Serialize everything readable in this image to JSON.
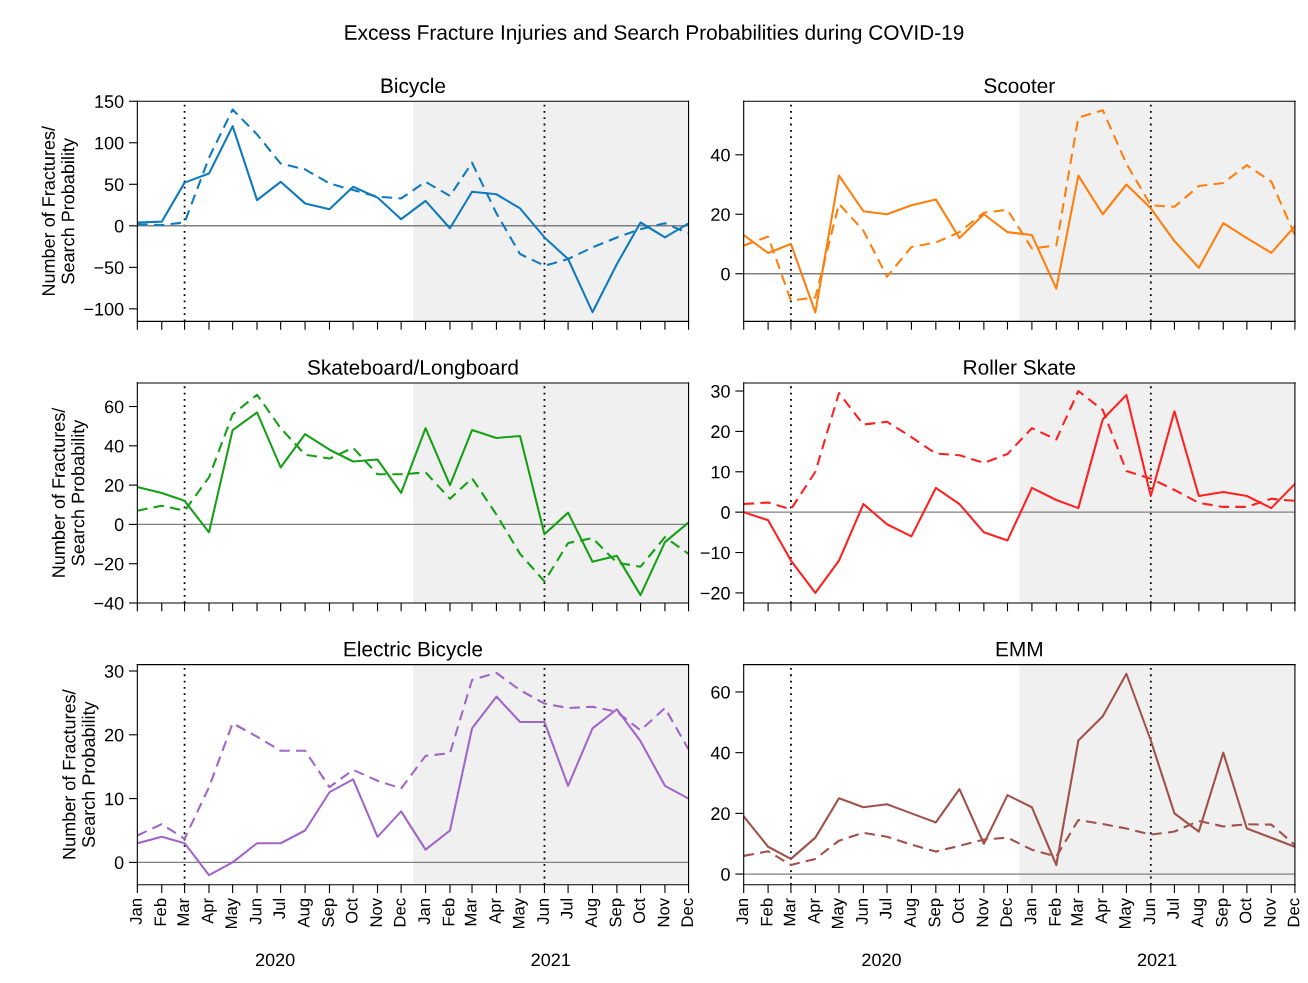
{
  "chart_data": [
    {
      "type": "line",
      "title": "Bicycle",
      "ylabel": "Number of Fractures/\nSearch Probability",
      "tick_labels": "y",
      "grid": false,
      "x": [
        "2020-01",
        "2020-02",
        "2020-03",
        "2020-04",
        "2020-05",
        "2020-06",
        "2020-07",
        "2020-08",
        "2020-09",
        "2020-10",
        "2020-11",
        "2020-12",
        "2021-01",
        "2021-02",
        "2021-03",
        "2021-04",
        "2021-05",
        "2021-06",
        "2021-07",
        "2021-08",
        "2021-09",
        "2021-10",
        "2021-11",
        "2021-12"
      ],
      "xlim": [
        "2020-01",
        "2021-12"
      ],
      "xticks": [
        {
          "value": "2020-01",
          "label": null
        },
        {
          "value": "2020-02",
          "label": null
        },
        {
          "value": "2020-03",
          "label": null
        },
        {
          "value": "2020-04",
          "label": null
        },
        {
          "value": "2020-05",
          "label": null
        },
        {
          "value": "2020-06",
          "label": null
        },
        {
          "value": "2020-07",
          "label": null
        },
        {
          "value": "2020-08",
          "label": null
        },
        {
          "value": "2020-09",
          "label": null
        },
        {
          "value": "2020-10",
          "label": null
        },
        {
          "value": "2020-11",
          "label": null
        },
        {
          "value": "2020-12",
          "label": null
        },
        {
          "value": "2021-01",
          "label": null
        },
        {
          "value": "2021-02",
          "label": null
        },
        {
          "value": "2021-03",
          "label": null
        },
        {
          "value": "2021-04",
          "label": null
        },
        {
          "value": "2021-05",
          "label": null
        },
        {
          "value": "2021-06",
          "label": null
        },
        {
          "value": "2021-07",
          "label": null
        },
        {
          "value": "2021-08",
          "label": null
        },
        {
          "value": "2021-09",
          "label": null
        },
        {
          "value": "2021-10",
          "label": null
        },
        {
          "value": "2021-11",
          "label": null
        },
        {
          "value": "2021-12",
          "label": null
        }
      ],
      "ylim": [
        -115,
        150
      ],
      "yticks": [
        -100,
        -50,
        0,
        50,
        100,
        150
      ],
      "ref_lines": [
        {
          "axis": "x",
          "value": "2020-03",
          "color": "#000000",
          "line_style": "dotted"
        },
        {
          "axis": "x",
          "value": "2021-06",
          "color": "#000000",
          "line_style": "dotted"
        },
        {
          "axis": "y",
          "value": 0,
          "color": "#808080",
          "line_style": "solid"
        }
      ],
      "bands": [
        {
          "axis": "x",
          "from": "2020-12-16",
          "to": "2021-12",
          "color": "#f0f0f0"
        }
      ],
      "series": [
        {
          "color": "#0f7bbd",
          "line_style": "solid",
          "values": [
            4,
            5,
            52,
            63,
            120,
            31,
            53,
            27,
            20,
            47,
            34,
            8,
            30,
            -3,
            41,
            38,
            21,
            -14,
            -40,
            -104,
            -46,
            4,
            -14,
            3
          ]
        },
        {
          "color": "#0f7bbd",
          "line_style": "dashed",
          "values": [
            2,
            1,
            4,
            82,
            140,
            110,
            75,
            68,
            51,
            43,
            35,
            33,
            53,
            36,
            76,
            15,
            -34,
            -48,
            -40,
            -26,
            -14,
            -4,
            3,
            -9
          ]
        }
      ]
    },
    {
      "type": "line",
      "title": "Scooter",
      "tick_labels": "y",
      "grid": false,
      "x": [
        "2020-01",
        "2020-02",
        "2020-03",
        "2020-04",
        "2020-05",
        "2020-06",
        "2020-07",
        "2020-08",
        "2020-09",
        "2020-10",
        "2020-11",
        "2020-12",
        "2021-01",
        "2021-02",
        "2021-03",
        "2021-04",
        "2021-05",
        "2021-06",
        "2021-07",
        "2021-08",
        "2021-09",
        "2021-10",
        "2021-11",
        "2021-12"
      ],
      "xlim": [
        "2020-01",
        "2021-12"
      ],
      "xticks": [
        {
          "value": "2020-01",
          "label": null
        },
        {
          "value": "2020-02",
          "label": null
        },
        {
          "value": "2020-03",
          "label": null
        },
        {
          "value": "2020-04",
          "label": null
        },
        {
          "value": "2020-05",
          "label": null
        },
        {
          "value": "2020-06",
          "label": null
        },
        {
          "value": "2020-07",
          "label": null
        },
        {
          "value": "2020-08",
          "label": null
        },
        {
          "value": "2020-09",
          "label": null
        },
        {
          "value": "2020-10",
          "label": null
        },
        {
          "value": "2020-11",
          "label": null
        },
        {
          "value": "2020-12",
          "label": null
        },
        {
          "value": "2021-01",
          "label": null
        },
        {
          "value": "2021-02",
          "label": null
        },
        {
          "value": "2021-03",
          "label": null
        },
        {
          "value": "2021-04",
          "label": null
        },
        {
          "value": "2021-05",
          "label": null
        },
        {
          "value": "2021-06",
          "label": null
        },
        {
          "value": "2021-07",
          "label": null
        },
        {
          "value": "2021-08",
          "label": null
        },
        {
          "value": "2021-09",
          "label": null
        },
        {
          "value": "2021-10",
          "label": null
        },
        {
          "value": "2021-11",
          "label": null
        },
        {
          "value": "2021-12",
          "label": null
        }
      ],
      "ylim": [
        -16,
        58
      ],
      "yticks": [
        0,
        20,
        40
      ],
      "ref_lines": [
        {
          "axis": "x",
          "value": "2020-03",
          "color": "#000000",
          "line_style": "dotted"
        },
        {
          "axis": "x",
          "value": "2021-06",
          "color": "#000000",
          "line_style": "dotted"
        },
        {
          "axis": "y",
          "value": 0,
          "color": "#808080",
          "line_style": "solid"
        }
      ],
      "bands": [
        {
          "axis": "x",
          "from": "2020-12-16",
          "to": "2021-12",
          "color": "#f0f0f0"
        }
      ],
      "series": [
        {
          "color": "#ff7f0e",
          "line_style": "solid",
          "values": [
            13,
            7,
            10,
            -13,
            33,
            21,
            20,
            23,
            25,
            12,
            20,
            14,
            13,
            -5,
            33,
            20,
            30,
            22,
            11,
            2,
            17,
            12,
            7,
            16
          ]
        },
        {
          "color": "#ff7f0e",
          "line_style": "dashed",
          "values": [
            9.5,
            12.5,
            -9,
            -8,
            23.5,
            14.5,
            -1,
            9,
            10.5,
            14,
            20.5,
            21.5,
            8.5,
            9.5,
            52.5,
            55,
            37,
            23,
            22.5,
            29.5,
            30.5,
            36.5,
            31,
            13
          ]
        }
      ]
    },
    {
      "type": "line",
      "title": "Skateboard/Longboard",
      "ylabel": "Number of Fractures/\nSearch Probability",
      "tick_labels": "y",
      "grid": false,
      "x": [
        "2020-01",
        "2020-02",
        "2020-03",
        "2020-04",
        "2020-05",
        "2020-06",
        "2020-07",
        "2020-08",
        "2020-09",
        "2020-10",
        "2020-11",
        "2020-12",
        "2021-01",
        "2021-02",
        "2021-03",
        "2021-04",
        "2021-05",
        "2021-06",
        "2021-07",
        "2021-08",
        "2021-09",
        "2021-10",
        "2021-11",
        "2021-12"
      ],
      "xlim": [
        "2020-01",
        "2021-12"
      ],
      "xticks": [
        {
          "value": "2020-01",
          "label": null
        },
        {
          "value": "2020-02",
          "label": null
        },
        {
          "value": "2020-03",
          "label": null
        },
        {
          "value": "2020-04",
          "label": null
        },
        {
          "value": "2020-05",
          "label": null
        },
        {
          "value": "2020-06",
          "label": null
        },
        {
          "value": "2020-07",
          "label": null
        },
        {
          "value": "2020-08",
          "label": null
        },
        {
          "value": "2020-09",
          "label": null
        },
        {
          "value": "2020-10",
          "label": null
        },
        {
          "value": "2020-11",
          "label": null
        },
        {
          "value": "2020-12",
          "label": null
        },
        {
          "value": "2021-01",
          "label": null
        },
        {
          "value": "2021-02",
          "label": null
        },
        {
          "value": "2021-03",
          "label": null
        },
        {
          "value": "2021-04",
          "label": null
        },
        {
          "value": "2021-05",
          "label": null
        },
        {
          "value": "2021-06",
          "label": null
        },
        {
          "value": "2021-07",
          "label": null
        },
        {
          "value": "2021-08",
          "label": null
        },
        {
          "value": "2021-09",
          "label": null
        },
        {
          "value": "2021-10",
          "label": null
        },
        {
          "value": "2021-11",
          "label": null
        },
        {
          "value": "2021-12",
          "label": null
        }
      ],
      "ylim": [
        -40,
        72
      ],
      "yticks": [
        -40,
        -20,
        0,
        20,
        40,
        60
      ],
      "ref_lines": [
        {
          "axis": "x",
          "value": "2020-03",
          "color": "#000000",
          "line_style": "dotted"
        },
        {
          "axis": "x",
          "value": "2021-06",
          "color": "#000000",
          "line_style": "dotted"
        },
        {
          "axis": "y",
          "value": 0,
          "color": "#808080",
          "line_style": "solid"
        }
      ],
      "bands": [
        {
          "axis": "x",
          "from": "2020-12-16",
          "to": "2021-12",
          "color": "#f0f0f0"
        }
      ],
      "series": [
        {
          "color": "#16a016",
          "line_style": "solid",
          "values": [
            19,
            16,
            12,
            -4,
            48,
            57,
            29,
            46,
            38,
            32,
            33,
            16,
            49,
            20,
            48,
            44,
            45,
            -5,
            6,
            -19,
            -16,
            -36,
            -9,
            1
          ]
        },
        {
          "color": "#16a016",
          "line_style": "dashed",
          "values": [
            7,
            9.5,
            7,
            24,
            56,
            66,
            49,
            35.5,
            33.5,
            39,
            25.5,
            25.5,
            26.5,
            13,
            23.5,
            5,
            -15,
            -29,
            -9.5,
            -7,
            -19.5,
            -21.5,
            -6.5,
            -15
          ]
        }
      ]
    },
    {
      "type": "line",
      "title": "Roller Skate",
      "tick_labels": "y",
      "grid": false,
      "x": [
        "2020-01",
        "2020-02",
        "2020-03",
        "2020-04",
        "2020-05",
        "2020-06",
        "2020-07",
        "2020-08",
        "2020-09",
        "2020-10",
        "2020-11",
        "2020-12",
        "2021-01",
        "2021-02",
        "2021-03",
        "2021-04",
        "2021-05",
        "2021-06",
        "2021-07",
        "2021-08",
        "2021-09",
        "2021-10",
        "2021-11",
        "2021-12"
      ],
      "xlim": [
        "2020-01",
        "2021-12"
      ],
      "xticks": [
        {
          "value": "2020-01",
          "label": null
        },
        {
          "value": "2020-02",
          "label": null
        },
        {
          "value": "2020-03",
          "label": null
        },
        {
          "value": "2020-04",
          "label": null
        },
        {
          "value": "2020-05",
          "label": null
        },
        {
          "value": "2020-06",
          "label": null
        },
        {
          "value": "2020-07",
          "label": null
        },
        {
          "value": "2020-08",
          "label": null
        },
        {
          "value": "2020-09",
          "label": null
        },
        {
          "value": "2020-10",
          "label": null
        },
        {
          "value": "2020-11",
          "label": null
        },
        {
          "value": "2020-12",
          "label": null
        },
        {
          "value": "2021-01",
          "label": null
        },
        {
          "value": "2021-02",
          "label": null
        },
        {
          "value": "2021-03",
          "label": null
        },
        {
          "value": "2021-04",
          "label": null
        },
        {
          "value": "2021-05",
          "label": null
        },
        {
          "value": "2021-06",
          "label": null
        },
        {
          "value": "2021-07",
          "label": null
        },
        {
          "value": "2021-08",
          "label": null
        },
        {
          "value": "2021-09",
          "label": null
        },
        {
          "value": "2021-10",
          "label": null
        },
        {
          "value": "2021-11",
          "label": null
        },
        {
          "value": "2021-12",
          "label": null
        }
      ],
      "ylim": [
        -22.5,
        32
      ],
      "yticks": [
        -20,
        -10,
        0,
        10,
        20,
        30
      ],
      "ref_lines": [
        {
          "axis": "x",
          "value": "2020-03",
          "color": "#000000",
          "line_style": "dotted"
        },
        {
          "axis": "x",
          "value": "2021-06",
          "color": "#000000",
          "line_style": "dotted"
        },
        {
          "axis": "y",
          "value": 0,
          "color": "#808080",
          "line_style": "solid"
        }
      ],
      "bands": [
        {
          "axis": "x",
          "from": "2020-12-16",
          "to": "2021-12",
          "color": "#f0f0f0"
        }
      ],
      "series": [
        {
          "color": "#ff2121",
          "line_style": "solid",
          "values": [
            0,
            -2,
            -12,
            -20,
            -12,
            2,
            -3,
            -6,
            6,
            2,
            -5,
            -7,
            6,
            3,
            1,
            23,
            29,
            4,
            25,
            4,
            5,
            4,
            1,
            7
          ]
        },
        {
          "color": "#ff2121",
          "line_style": "dashed",
          "values": [
            2,
            2.4,
            0.7,
            10,
            29.5,
            21.7,
            22.4,
            18.6,
            14.5,
            14.1,
            12.2,
            14.4,
            20.8,
            18,
            30,
            25.3,
            10.2,
            8.3,
            5.5,
            2.3,
            1.3,
            1.3,
            3.3,
            2.8
          ]
        }
      ]
    },
    {
      "type": "line",
      "title": "Electric Bicycle",
      "ylabel": "Number of Fractures/\nSearch Probability",
      "annotations": [
        "2020",
        "2021"
      ],
      "grid": false,
      "x": [
        "2020-01",
        "2020-02",
        "2020-03",
        "2020-04",
        "2020-05",
        "2020-06",
        "2020-07",
        "2020-08",
        "2020-09",
        "2020-10",
        "2020-11",
        "2020-12",
        "2021-01",
        "2021-02",
        "2021-03",
        "2021-04",
        "2021-05",
        "2021-06",
        "2021-07",
        "2021-08",
        "2021-09",
        "2021-10",
        "2021-11",
        "2021-12"
      ],
      "xlim": [
        "2020-01",
        "2021-12"
      ],
      "xticks": [
        {
          "value": "2020-01",
          "label": "Jan"
        },
        {
          "value": "2020-02",
          "label": "Feb"
        },
        {
          "value": "2020-03",
          "label": "Mar"
        },
        {
          "value": "2020-04",
          "label": "Apr"
        },
        {
          "value": "2020-05",
          "label": "May"
        },
        {
          "value": "2020-06",
          "label": "Jun"
        },
        {
          "value": "2020-07",
          "label": "Jul"
        },
        {
          "value": "2020-08",
          "label": "Aug"
        },
        {
          "value": "2020-09",
          "label": "Sep"
        },
        {
          "value": "2020-10",
          "label": "Oct"
        },
        {
          "value": "2020-11",
          "label": "Nov"
        },
        {
          "value": "2020-12",
          "label": "Dec"
        },
        {
          "value": "2021-01",
          "label": "Jan"
        },
        {
          "value": "2021-02",
          "label": "Feb"
        },
        {
          "value": "2021-03",
          "label": "Mar"
        },
        {
          "value": "2021-04",
          "label": "Apr"
        },
        {
          "value": "2021-05",
          "label": "May"
        },
        {
          "value": "2021-06",
          "label": "Jun"
        },
        {
          "value": "2021-07",
          "label": "Jul"
        },
        {
          "value": "2021-08",
          "label": "Aug"
        },
        {
          "value": "2021-09",
          "label": "Sep"
        },
        {
          "value": "2021-10",
          "label": "Oct"
        },
        {
          "value": "2021-11",
          "label": "Nov"
        },
        {
          "value": "2021-12",
          "label": "Dec"
        }
      ],
      "ylim": [
        -3.5,
        31
      ],
      "yticks": [
        0,
        10,
        20,
        30
      ],
      "ref_lines": [
        {
          "axis": "x",
          "value": "2020-03",
          "color": "#000000",
          "line_style": "dotted"
        },
        {
          "axis": "x",
          "value": "2021-06",
          "color": "#000000",
          "line_style": "dotted"
        },
        {
          "axis": "y",
          "value": 0,
          "color": "#808080",
          "line_style": "solid"
        }
      ],
      "bands": [
        {
          "axis": "x",
          "from": "2020-12-16",
          "to": "2021-12",
          "color": "#f0f0f0"
        }
      ],
      "series": [
        {
          "color": "#a066c8",
          "line_style": "solid",
          "values": [
            3,
            4,
            3,
            -2,
            0,
            3,
            3,
            5,
            11,
            13,
            4,
            8,
            2,
            5,
            21,
            26,
            22,
            22,
            12,
            21,
            24,
            19,
            12,
            10
          ]
        },
        {
          "color": "#a066c8",
          "line_style": "dashed",
          "values": [
            4.2,
            6,
            3.7,
            11.8,
            21.8,
            19.7,
            17.5,
            17.5,
            11.8,
            14.5,
            12.8,
            11.6,
            16.7,
            17.1,
            28.6,
            29.7,
            27,
            24.9,
            24.2,
            24.4,
            23.6,
            20.7,
            24.2,
            17.7
          ]
        }
      ]
    },
    {
      "type": "line",
      "title": "EMM",
      "annotations": [
        "2020",
        "2021"
      ],
      "grid": false,
      "x": [
        "2020-01",
        "2020-02",
        "2020-03",
        "2020-04",
        "2020-05",
        "2020-06",
        "2020-07",
        "2020-08",
        "2020-09",
        "2020-10",
        "2020-11",
        "2020-12",
        "2021-01",
        "2021-02",
        "2021-03",
        "2021-04",
        "2021-05",
        "2021-06",
        "2021-07",
        "2021-08",
        "2021-09",
        "2021-10",
        "2021-11",
        "2021-12"
      ],
      "xlim": [
        "2020-01",
        "2021-12"
      ],
      "xticks": [
        {
          "value": "2020-01",
          "label": "Jan"
        },
        {
          "value": "2020-02",
          "label": "Feb"
        },
        {
          "value": "2020-03",
          "label": "Mar"
        },
        {
          "value": "2020-04",
          "label": "Apr"
        },
        {
          "value": "2020-05",
          "label": "May"
        },
        {
          "value": "2020-06",
          "label": "Jun"
        },
        {
          "value": "2020-07",
          "label": "Jul"
        },
        {
          "value": "2020-08",
          "label": "Aug"
        },
        {
          "value": "2020-09",
          "label": "Sep"
        },
        {
          "value": "2020-10",
          "label": "Oct"
        },
        {
          "value": "2020-11",
          "label": "Nov"
        },
        {
          "value": "2020-12",
          "label": "Dec"
        },
        {
          "value": "2021-01",
          "label": "Jan"
        },
        {
          "value": "2021-02",
          "label": "Feb"
        },
        {
          "value": "2021-03",
          "label": "Mar"
        },
        {
          "value": "2021-04",
          "label": "Apr"
        },
        {
          "value": "2021-05",
          "label": "May"
        },
        {
          "value": "2021-06",
          "label": "Jun"
        },
        {
          "value": "2021-07",
          "label": "Jul"
        },
        {
          "value": "2021-08",
          "label": "Aug"
        },
        {
          "value": "2021-09",
          "label": "Sep"
        },
        {
          "value": "2021-10",
          "label": "Oct"
        },
        {
          "value": "2021-11",
          "label": "Nov"
        },
        {
          "value": "2021-12",
          "label": "Dec"
        }
      ],
      "ylim": [
        -3.5,
        69
      ],
      "yticks": [
        0,
        20,
        40,
        60
      ],
      "ref_lines": [
        {
          "axis": "x",
          "value": "2020-03",
          "color": "#000000",
          "line_style": "dotted"
        },
        {
          "axis": "x",
          "value": "2021-06",
          "color": "#000000",
          "line_style": "dotted"
        },
        {
          "axis": "y",
          "value": 0,
          "color": "#808080",
          "line_style": "solid"
        }
      ],
      "bands": [
        {
          "axis": "x",
          "from": "2020-12-16",
          "to": "2021-12",
          "color": "#f0f0f0"
        }
      ],
      "series": [
        {
          "color": "#a0524a",
          "line_style": "solid",
          "values": [
            19,
            9,
            5,
            12,
            25,
            22,
            23,
            20,
            17,
            28,
            10,
            26,
            22,
            3,
            44,
            52,
            66,
            44,
            20,
            14,
            40,
            15,
            12,
            9
          ]
        },
        {
          "color": "#a0524a",
          "line_style": "dashed",
          "values": [
            6,
            7.5,
            3,
            5,
            11,
            13.6,
            12.3,
            9.7,
            7.4,
            9.3,
            11.4,
            12,
            8,
            5.8,
            17.8,
            16.5,
            15,
            13,
            14,
            17.5,
            15.7,
            16.4,
            16.3,
            9.6
          ]
        }
      ]
    },
    {
      "type": "other",
      "title": "Excess Fracture Injuries and Search Probabilities during COVID-19"
    }
  ]
}
